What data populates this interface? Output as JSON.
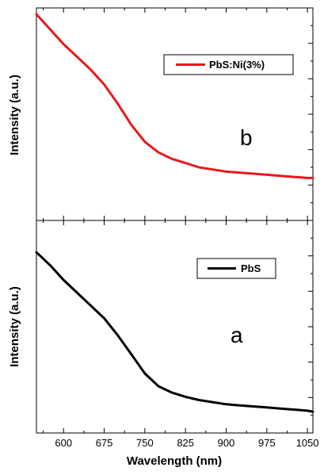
{
  "chart_data": [
    {
      "type": "line",
      "panel": "top",
      "ylabel": "Intensity (a.u.)",
      "annotation": "b",
      "legend": {
        "placement": "top-right",
        "entries": [
          "PbS:Ni(3%)"
        ]
      },
      "xlim": [
        550,
        1060
      ],
      "ylim": [
        0,
        1
      ],
      "grid": false,
      "series": [
        {
          "name": "PbS:Ni(3%)",
          "color": "#e41a1c",
          "x": [
            550,
            575,
            600,
            625,
            650,
            675,
            700,
            725,
            750,
            775,
            800,
            825,
            850,
            875,
            900,
            925,
            950,
            975,
            1000,
            1025,
            1050,
            1060
          ],
          "y": [
            0.97,
            0.9,
            0.83,
            0.77,
            0.71,
            0.64,
            0.55,
            0.45,
            0.37,
            0.32,
            0.29,
            0.27,
            0.25,
            0.24,
            0.23,
            0.225,
            0.22,
            0.215,
            0.21,
            0.205,
            0.2,
            0.2
          ]
        }
      ]
    },
    {
      "type": "line",
      "panel": "bottom",
      "xlabel": "Wavelength (nm)",
      "ylabel": "Intensity (a.u.)",
      "annotation": "a",
      "legend": {
        "placement": "top-right",
        "entries": [
          "PbS"
        ]
      },
      "xlim": [
        550,
        1060
      ],
      "ylim": [
        0,
        1
      ],
      "xticks": [
        600,
        675,
        750,
        825,
        900,
        975,
        1050
      ],
      "grid": false,
      "series": [
        {
          "name": "PbS",
          "color": "#000000",
          "x": [
            550,
            575,
            600,
            625,
            650,
            675,
            700,
            725,
            750,
            775,
            800,
            825,
            850,
            875,
            900,
            925,
            950,
            975,
            1000,
            1025,
            1050,
            1060
          ],
          "y": [
            0.85,
            0.79,
            0.72,
            0.66,
            0.6,
            0.54,
            0.46,
            0.37,
            0.28,
            0.22,
            0.19,
            0.17,
            0.155,
            0.145,
            0.135,
            0.13,
            0.125,
            0.12,
            0.115,
            0.11,
            0.105,
            0.1
          ]
        }
      ]
    }
  ]
}
